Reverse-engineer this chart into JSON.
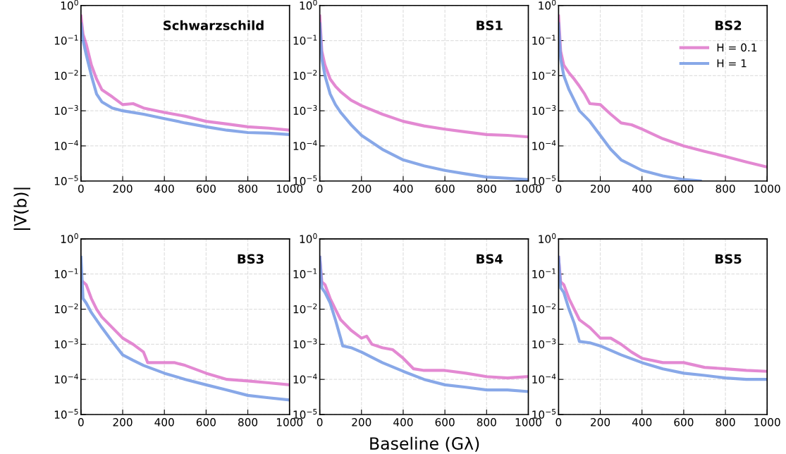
{
  "chart_data": [
    {
      "type": "line",
      "title": "Schwarzschild",
      "ylabel": "|V̄(b)|",
      "log": "y",
      "grid": true,
      "line_style": "solid",
      "xlim": [
        0,
        1000
      ],
      "xticks": [
        0,
        200,
        400,
        600,
        800,
        1000
      ],
      "ylim": [
        1e-05,
        1
      ],
      "yticks": [
        {
          "value": 1e-05,
          "label": "10$^{−5}$"
        },
        {
          "value": 0.0001,
          "label": "10$^{−4}$"
        },
        {
          "value": 0.001,
          "label": "10$^{−3}$"
        },
        {
          "value": 0.01,
          "label": "10$^{−2}$"
        },
        {
          "value": 0.1,
          "label": "10$^{−1}$"
        },
        {
          "value": 1,
          "label": "10$^{0}$"
        }
      ],
      "series": [
        {
          "color": "#e07ccd",
          "x": [
            0,
            10,
            25,
            50,
            75,
            100,
            150,
            200,
            250,
            300,
            400,
            500,
            600,
            700,
            800,
            900,
            1000
          ],
          "values": [
            0.5,
            0.15,
            0.08,
            0.02,
            0.008,
            0.004,
            0.0025,
            0.0015,
            0.0016,
            0.0012,
            0.0009,
            0.0007,
            0.0005,
            0.00042,
            0.00035,
            0.00032,
            0.00028
          ]
        },
        {
          "color": "#7b9ee6",
          "x": [
            0,
            10,
            25,
            50,
            75,
            100,
            150,
            200,
            300,
            400,
            500,
            600,
            700,
            800,
            900,
            1000
          ],
          "values": [
            0.3,
            0.1,
            0.04,
            0.01,
            0.003,
            0.0018,
            0.0012,
            0.001,
            0.0008,
            0.0006,
            0.00045,
            0.00035,
            0.00028,
            0.00024,
            0.00023,
            0.00021
          ]
        }
      ]
    },
    {
      "type": "line",
      "title": "BS1",
      "log": "y",
      "grid": true,
      "line_style": "solid",
      "xlim": [
        0,
        1000
      ],
      "xticks": [
        0,
        200,
        400,
        600,
        800,
        1000
      ],
      "ylim": [
        1e-05,
        1
      ],
      "yticks": [
        {
          "value": 1e-05,
          "label": "10$^{−5}$"
        },
        {
          "value": 0.0001,
          "label": "10$^{−4}$"
        },
        {
          "value": 0.001,
          "label": "10$^{−3}$"
        },
        {
          "value": 0.01,
          "label": "10$^{−2}$"
        },
        {
          "value": 0.1,
          "label": "10$^{−1}$"
        },
        {
          "value": 1,
          "label": "10$^{0}$"
        }
      ],
      "series": [
        {
          "color": "#e07ccd",
          "x": [
            0,
            10,
            25,
            50,
            75,
            100,
            150,
            200,
            300,
            400,
            500,
            600,
            700,
            800,
            900,
            1000
          ],
          "values": [
            0.5,
            0.05,
            0.02,
            0.008,
            0.005,
            0.0035,
            0.002,
            0.0014,
            0.0008,
            0.0005,
            0.00037,
            0.0003,
            0.00025,
            0.00021,
            0.0002,
            0.00018
          ]
        },
        {
          "color": "#7b9ee6",
          "x": [
            0,
            10,
            25,
            50,
            75,
            100,
            150,
            200,
            300,
            400,
            500,
            600,
            700,
            800,
            900,
            1000
          ],
          "values": [
            0.3,
            0.03,
            0.01,
            0.003,
            0.0015,
            0.0009,
            0.0004,
            0.0002,
            8e-05,
            4e-05,
            2.7e-05,
            2e-05,
            1.6e-05,
            1.3e-05,
            1.2e-05,
            1.1e-05
          ]
        }
      ]
    },
    {
      "type": "line",
      "title": "BS2",
      "log": "y",
      "grid": true,
      "line_style": "solid",
      "legend": "top right",
      "xlim": [
        0,
        1000
      ],
      "xticks": [
        0,
        200,
        400,
        600,
        800,
        1000
      ],
      "ylim": [
        1e-05,
        1
      ],
      "yticks": [
        {
          "value": 1e-05,
          "label": "10$^{−5}$"
        },
        {
          "value": 0.0001,
          "label": "10$^{−4}$"
        },
        {
          "value": 0.001,
          "label": "10$^{−3}$"
        },
        {
          "value": 0.01,
          "label": "10$^{−2}$"
        },
        {
          "value": 0.1,
          "label": "10$^{−1}$"
        },
        {
          "value": 1,
          "label": "10$^{0}$"
        }
      ],
      "series": [
        {
          "name": "H = 0.1",
          "color": "#e07ccd",
          "x": [
            0,
            10,
            25,
            50,
            75,
            100,
            125,
            150,
            200,
            250,
            300,
            350,
            400,
            500,
            600,
            700,
            800,
            900,
            1000
          ],
          "values": [
            0.5,
            0.05,
            0.02,
            0.012,
            0.008,
            0.005,
            0.003,
            0.0016,
            0.0015,
            0.0008,
            0.00045,
            0.0004,
            0.0003,
            0.00016,
            0.0001,
            7e-05,
            5e-05,
            3.5e-05,
            2.5e-05
          ]
        },
        {
          "name": "H = 1",
          "color": "#7b9ee6",
          "x": [
            0,
            10,
            25,
            50,
            75,
            100,
            150,
            200,
            250,
            300,
            400,
            500,
            600,
            680
          ],
          "values": [
            0.3,
            0.03,
            0.01,
            0.004,
            0.002,
            0.001,
            0.0005,
            0.0002,
            8e-05,
            4e-05,
            2e-05,
            1.4e-05,
            1.1e-05,
            1e-05
          ]
        }
      ]
    },
    {
      "type": "line",
      "title": "BS3",
      "log": "y",
      "grid": true,
      "line_style": "solid",
      "xlim": [
        0,
        1000
      ],
      "xticks": [
        0,
        200,
        400,
        600,
        800,
        1000
      ],
      "ylim": [
        1e-05,
        1
      ],
      "yticks": [
        {
          "value": 1e-05,
          "label": "10$^{−5}$"
        },
        {
          "value": 0.0001,
          "label": "10$^{−4}$"
        },
        {
          "value": 0.001,
          "label": "10$^{−3}$"
        },
        {
          "value": 0.01,
          "label": "10$^{−2}$"
        },
        {
          "value": 0.1,
          "label": "10$^{−1}$"
        },
        {
          "value": 1,
          "label": "10$^{0}$"
        }
      ],
      "series": [
        {
          "color": "#e07ccd",
          "x": [
            10,
            25,
            50,
            75,
            100,
            150,
            200,
            250,
            300,
            320,
            400,
            450,
            500,
            600,
            700,
            800,
            900,
            1000
          ],
          "values": [
            0.06,
            0.05,
            0.02,
            0.01,
            0.006,
            0.003,
            0.0015,
            0.001,
            0.0006,
            0.0003,
            0.0003,
            0.0003,
            0.00025,
            0.00015,
            0.0001,
            9e-05,
            8e-05,
            7e-05
          ]
        },
        {
          "color": "#7b9ee6",
          "x": [
            0,
            10,
            25,
            50,
            100,
            150,
            200,
            250,
            300,
            400,
            500,
            600,
            700,
            800,
            900,
            1000
          ],
          "values": [
            0.3,
            0.02,
            0.015,
            0.008,
            0.003,
            0.0012,
            0.0005,
            0.00035,
            0.00025,
            0.00015,
            0.0001,
            7e-05,
            5e-05,
            3.5e-05,
            3e-05,
            2.6e-05
          ]
        }
      ]
    },
    {
      "type": "line",
      "title": "BS4",
      "xlabel": "Baseline (Gλ)",
      "log": "y",
      "grid": true,
      "line_style": "solid",
      "xlim": [
        0,
        1000
      ],
      "xticks": [
        0,
        200,
        400,
        600,
        800,
        1000
      ],
      "ylim": [
        1e-05,
        1
      ],
      "yticks": [
        {
          "value": 1e-05,
          "label": "10$^{−5}$"
        },
        {
          "value": 0.0001,
          "label": "10$^{−4}$"
        },
        {
          "value": 0.001,
          "label": "10$^{−3}$"
        },
        {
          "value": 0.01,
          "label": "10$^{−2}$"
        },
        {
          "value": 0.1,
          "label": "10$^{−1}$"
        },
        {
          "value": 1,
          "label": "10$^{0}$"
        }
      ],
      "series": [
        {
          "color": "#e07ccd",
          "x": [
            0,
            10,
            25,
            50,
            75,
            100,
            150,
            200,
            225,
            250,
            300,
            350,
            400,
            450,
            500,
            600,
            700,
            800,
            900,
            1000
          ],
          "values": [
            0.3,
            0.06,
            0.05,
            0.02,
            0.01,
            0.005,
            0.0025,
            0.0015,
            0.0017,
            0.001,
            0.0008,
            0.0007,
            0.0004,
            0.0002,
            0.00018,
            0.00018,
            0.00015,
            0.00012,
            0.00011,
            0.00012
          ]
        },
        {
          "color": "#7b9ee6",
          "x": [
            0,
            10,
            25,
            50,
            75,
            100,
            110,
            150,
            200,
            300,
            400,
            500,
            600,
            700,
            800,
            900,
            1000
          ],
          "values": [
            0.3,
            0.04,
            0.03,
            0.015,
            0.005,
            0.0015,
            0.0009,
            0.0008,
            0.0006,
            0.0003,
            0.00017,
            0.0001,
            7e-05,
            6e-05,
            5e-05,
            5e-05,
            4.5e-05
          ]
        }
      ]
    },
    {
      "type": "line",
      "title": "BS5",
      "log": "y",
      "grid": true,
      "line_style": "solid",
      "xlim": [
        0,
        1000
      ],
      "xticks": [
        0,
        200,
        400,
        600,
        800,
        1000
      ],
      "ylim": [
        1e-05,
        1
      ],
      "yticks": [
        {
          "value": 1e-05,
          "label": "10$^{−5}$"
        },
        {
          "value": 0.0001,
          "label": "10$^{−4}$"
        },
        {
          "value": 0.001,
          "label": "10$^{−3}$"
        },
        {
          "value": 0.01,
          "label": "10$^{−2}$"
        },
        {
          "value": 0.1,
          "label": "10$^{−1}$"
        },
        {
          "value": 1,
          "label": "10$^{0}$"
        }
      ],
      "series": [
        {
          "color": "#e07ccd",
          "x": [
            0,
            10,
            25,
            50,
            75,
            100,
            150,
            200,
            250,
            300,
            350,
            400,
            500,
            600,
            700,
            800,
            900,
            1000
          ],
          "values": [
            0.3,
            0.06,
            0.05,
            0.02,
            0.01,
            0.005,
            0.003,
            0.0015,
            0.0015,
            0.001,
            0.0006,
            0.0004,
            0.0003,
            0.0003,
            0.00022,
            0.0002,
            0.00018,
            0.00017
          ]
        },
        {
          "color": "#7b9ee6",
          "x": [
            0,
            10,
            25,
            50,
            75,
            100,
            150,
            200,
            300,
            400,
            500,
            600,
            700,
            800,
            900,
            1000
          ],
          "values": [
            0.3,
            0.04,
            0.03,
            0.01,
            0.004,
            0.0012,
            0.0011,
            0.0009,
            0.0005,
            0.0003,
            0.0002,
            0.00015,
            0.00013,
            0.00011,
            0.0001,
            0.0001
          ]
        }
      ]
    }
  ]
}
